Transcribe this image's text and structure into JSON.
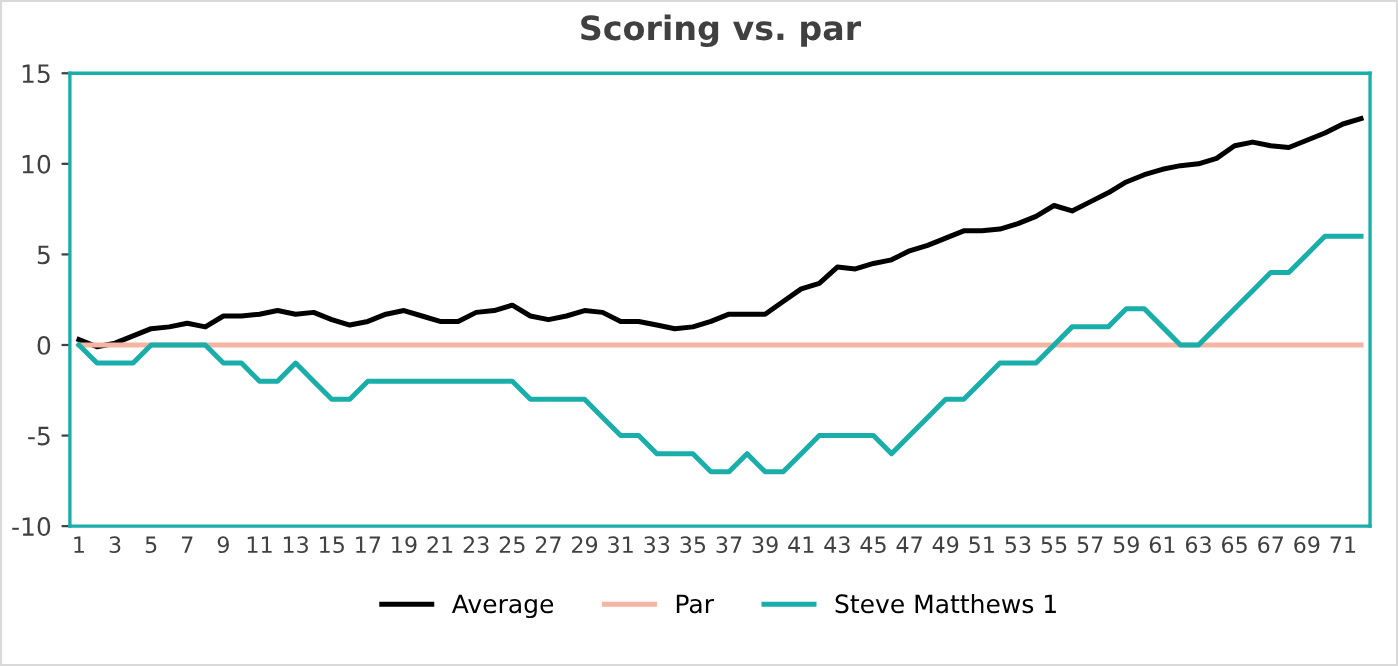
{
  "chart_data": {
    "type": "line",
    "title": "Scoring vs. par",
    "categories": [
      "1",
      null,
      "3",
      null,
      "5",
      null,
      "7",
      null,
      "9",
      null,
      "11",
      null,
      "13",
      null,
      "15",
      null,
      "17",
      null,
      "19",
      null,
      "21",
      null,
      "23",
      null,
      "25",
      null,
      "27",
      null,
      "29",
      null,
      "31",
      null,
      "33",
      null,
      "35",
      null,
      "37",
      null,
      "39",
      null,
      "41",
      null,
      "43",
      null,
      "45",
      null,
      "47",
      null,
      "49",
      null,
      "51",
      null,
      "53",
      null,
      "55",
      null,
      "57",
      null,
      "59",
      null,
      "61",
      null,
      "63",
      null,
      "65",
      null,
      "67",
      null,
      "69",
      null,
      "71",
      null
    ],
    "series": [
      {
        "name": "Average",
        "color": "#000000",
        "values": [
          0.3,
          -0.1,
          0.1,
          0.5,
          0.9,
          1.0,
          1.2,
          1.0,
          1.6,
          1.6,
          1.7,
          1.9,
          1.7,
          1.8,
          1.4,
          1.1,
          1.3,
          1.7,
          1.9,
          1.6,
          1.3,
          1.3,
          1.8,
          1.9,
          2.2,
          1.6,
          1.4,
          1.6,
          1.9,
          1.8,
          1.3,
          1.3,
          1.1,
          0.9,
          1.0,
          1.3,
          1.7,
          1.7,
          1.7,
          2.4,
          3.1,
          3.4,
          4.3,
          4.2,
          4.5,
          4.7,
          5.2,
          5.5,
          5.9,
          6.3,
          6.3,
          6.4,
          6.7,
          7.1,
          7.7,
          7.4,
          7.9,
          8.4,
          9.0,
          9.4,
          9.7,
          9.9,
          10.0,
          10.3,
          11.0,
          11.2,
          11.0,
          10.9,
          11.3,
          11.7,
          12.2,
          12.5
        ]
      },
      {
        "name": "Par",
        "color": "#f4b5a4",
        "values": [
          0,
          0,
          0,
          0,
          0,
          0,
          0,
          0,
          0,
          0,
          0,
          0,
          0,
          0,
          0,
          0,
          0,
          0,
          0,
          0,
          0,
          0,
          0,
          0,
          0,
          0,
          0,
          0,
          0,
          0,
          0,
          0,
          0,
          0,
          0,
          0,
          0,
          0,
          0,
          0,
          0,
          0,
          0,
          0,
          0,
          0,
          0,
          0,
          0,
          0,
          0,
          0,
          0,
          0,
          0,
          0,
          0,
          0,
          0,
          0,
          0,
          0,
          0,
          0,
          0,
          0,
          0,
          0,
          0,
          0,
          0,
          0
        ]
      },
      {
        "name": "Steve Matthews 1",
        "color": "#1aaeab",
        "values": [
          0,
          -1,
          -1,
          -1,
          0,
          0,
          0,
          0,
          -1,
          -1,
          -2,
          -2,
          -1,
          -2,
          -3,
          -3,
          -2,
          -2,
          -2,
          -2,
          -2,
          -2,
          -2,
          -2,
          -2,
          -3,
          -3,
          -3,
          -3,
          -4,
          -5,
          -5,
          -6,
          -6,
          -6,
          -7,
          -7,
          -6,
          -7,
          -7,
          -6,
          -5,
          -5,
          -5,
          -5,
          -6,
          -5,
          -4,
          -3,
          -3,
          -2,
          -1,
          -1,
          -1,
          0,
          1,
          1,
          1,
          2,
          2,
          1,
          0,
          0,
          1,
          2,
          3,
          4,
          4,
          5,
          6,
          6,
          6
        ]
      }
    ],
    "ylim": [
      -10,
      15
    ],
    "yticks": [
      -10,
      -5,
      0,
      5,
      10,
      15
    ],
    "grid": false,
    "legend": "bottom",
    "marker": "none",
    "line_style": "solid"
  }
}
